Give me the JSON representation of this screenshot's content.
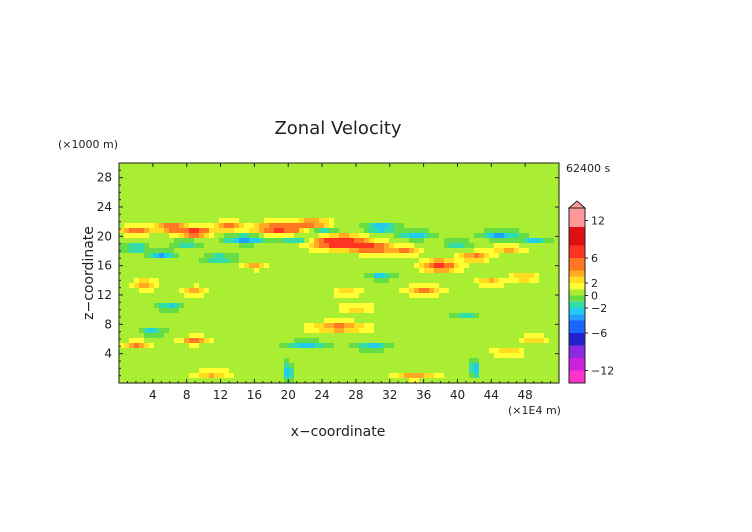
{
  "chart_data": {
    "type": "heatmap",
    "title": "Zonal Velocity",
    "xlabel": "x−coordinate",
    "ylabel": "z−coordinate",
    "x_unit": "(×1E4 m)",
    "y_unit": "(×1000 m)",
    "time_label": "62400 s",
    "xlim": [
      0,
      52
    ],
    "ylim": [
      0,
      30
    ],
    "x_ticks": [
      "4",
      "8",
      "12",
      "16",
      "20",
      "24",
      "28",
      "32",
      "36",
      "40",
      "44",
      "48"
    ],
    "y_ticks": [
      "4",
      "8",
      "12",
      "16",
      "20",
      "24",
      "28"
    ],
    "x_tick_values": [
      4,
      8,
      12,
      16,
      20,
      24,
      28,
      32,
      36,
      40,
      44,
      48
    ],
    "y_tick_values": [
      4,
      8,
      12,
      16,
      20,
      24,
      28
    ],
    "colorbar": {
      "range": [
        -14,
        14
      ],
      "tick_values": [
        12,
        6,
        2,
        0,
        -2,
        -6,
        -12
      ],
      "tick_labels": [
        "12",
        "6",
        "2",
        "0",
        "−2",
        "−6",
        "−12"
      ],
      "levels": [
        {
          "from": -14,
          "to": -12,
          "color": "#ff33cc"
        },
        {
          "from": -12,
          "to": -10,
          "color": "#cc22dd"
        },
        {
          "from": -10,
          "to": -8,
          "color": "#8a2be2"
        },
        {
          "from": -8,
          "to": -6,
          "color": "#2222cc"
        },
        {
          "from": -6,
          "to": -4,
          "color": "#1a66ff"
        },
        {
          "from": -4,
          "to": -3,
          "color": "#1ea0ff"
        },
        {
          "from": -3,
          "to": -2,
          "color": "#22ccee"
        },
        {
          "from": -2,
          "to": -1,
          "color": "#33ddaa"
        },
        {
          "from": -1,
          "to": 0,
          "color": "#66dd44"
        },
        {
          "from": 0,
          "to": 1,
          "color": "#aaee33"
        },
        {
          "from": 1,
          "to": 2,
          "color": "#ffff33"
        },
        {
          "from": 2,
          "to": 3,
          "color": "#ffdd22"
        },
        {
          "from": 3,
          "to": 4,
          "color": "#ffaa22"
        },
        {
          "from": 4,
          "to": 6,
          "color": "#ff7722"
        },
        {
          "from": 6,
          "to": 8,
          "color": "#ff3322"
        },
        {
          "from": 8,
          "to": 11,
          "color": "#dd1111"
        },
        {
          "from": 11,
          "to": 14,
          "color": "#ff9999"
        }
      ]
    },
    "background_value": 0.5,
    "features": [
      {
        "x": 2,
        "z": 20.8,
        "value": 5,
        "sx": 1.6,
        "sz": 0.6
      },
      {
        "x": 6,
        "z": 21.2,
        "value": 5,
        "sx": 1.6,
        "sz": 0.6
      },
      {
        "x": 9,
        "z": 20.6,
        "value": 6,
        "sx": 2.0,
        "sz": 0.7
      },
      {
        "x": 13,
        "z": 21.4,
        "value": 4,
        "sx": 1.6,
        "sz": 0.6
      },
      {
        "x": 19,
        "z": 21.0,
        "value": 6,
        "sx": 3.0,
        "sz": 0.8
      },
      {
        "x": 23,
        "z": 21.8,
        "value": 4,
        "sx": 2.0,
        "sz": 0.6
      },
      {
        "x": 26,
        "z": 19.2,
        "value": 8,
        "sx": 3.0,
        "sz": 0.9
      },
      {
        "x": 30,
        "z": 18.4,
        "value": 6,
        "sx": 2.2,
        "sz": 0.7
      },
      {
        "x": 34,
        "z": 18.0,
        "value": 4,
        "sx": 1.5,
        "sz": 0.6
      },
      {
        "x": 38,
        "z": 16.0,
        "value": 6,
        "sx": 2.0,
        "sz": 0.8
      },
      {
        "x": 42,
        "z": 17.2,
        "value": 4,
        "sx": 1.6,
        "sz": 0.6
      },
      {
        "x": 46,
        "z": 18.2,
        "value": 3,
        "sx": 1.8,
        "sz": 0.6
      },
      {
        "x": 2,
        "z": 18.4,
        "value": -3,
        "sx": 1.5,
        "sz": 0.5
      },
      {
        "x": 5,
        "z": 17.5,
        "value": -4,
        "sx": 1.4,
        "sz": 0.5
      },
      {
        "x": 8,
        "z": 19.0,
        "value": -3,
        "sx": 1.5,
        "sz": 0.5
      },
      {
        "x": 15,
        "z": 19.6,
        "value": -4,
        "sx": 2.5,
        "sz": 0.6
      },
      {
        "x": 21,
        "z": 19.6,
        "value": -3,
        "sx": 2.0,
        "sz": 0.5
      },
      {
        "x": 24,
        "z": 20.6,
        "value": -3,
        "sx": 1.8,
        "sz": 0.5
      },
      {
        "x": 31,
        "z": 21.2,
        "value": -4,
        "sx": 2.0,
        "sz": 0.6
      },
      {
        "x": 35,
        "z": 20.2,
        "value": -3,
        "sx": 2.0,
        "sz": 0.6
      },
      {
        "x": 40,
        "z": 19.0,
        "value": -3,
        "sx": 1.5,
        "sz": 0.5
      },
      {
        "x": 45,
        "z": 20.2,
        "value": -4,
        "sx": 2.0,
        "sz": 0.6
      },
      {
        "x": 49,
        "z": 19.4,
        "value": -3,
        "sx": 1.6,
        "sz": 0.5
      },
      {
        "x": 12,
        "z": 17.0,
        "value": -3,
        "sx": 2.0,
        "sz": 0.5
      },
      {
        "x": 3,
        "z": 13.5,
        "value": 3,
        "sx": 1.2,
        "sz": 0.8
      },
      {
        "x": 9,
        "z": 12.5,
        "value": 3,
        "sx": 1.4,
        "sz": 0.6
      },
      {
        "x": 27,
        "z": 12.4,
        "value": 3,
        "sx": 1.4,
        "sz": 0.5
      },
      {
        "x": 36,
        "z": 12.6,
        "value": 4,
        "sx": 2.0,
        "sz": 0.6
      },
      {
        "x": 44,
        "z": 13.8,
        "value": 3,
        "sx": 1.5,
        "sz": 0.6
      },
      {
        "x": 48,
        "z": 14.4,
        "value": 3,
        "sx": 1.5,
        "sz": 0.6
      },
      {
        "x": 31,
        "z": 14.6,
        "value": -3,
        "sx": 1.4,
        "sz": 0.5
      },
      {
        "x": 6,
        "z": 10.4,
        "value": -3,
        "sx": 1.4,
        "sz": 0.5
      },
      {
        "x": 26,
        "z": 7.6,
        "value": 4,
        "sx": 3.0,
        "sz": 0.7
      },
      {
        "x": 22,
        "z": 5.2,
        "value": -3,
        "sx": 2.5,
        "sz": 0.5
      },
      {
        "x": 30,
        "z": 5.0,
        "value": -3,
        "sx": 2.0,
        "sz": 0.5
      },
      {
        "x": 9,
        "z": 5.8,
        "value": 4,
        "sx": 1.6,
        "sz": 0.5
      },
      {
        "x": 2,
        "z": 5.2,
        "value": 4,
        "sx": 1.3,
        "sz": 0.5
      },
      {
        "x": 4,
        "z": 7.0,
        "value": -3,
        "sx": 1.3,
        "sz": 0.5
      },
      {
        "x": 46,
        "z": 4.2,
        "value": 3,
        "sx": 1.6,
        "sz": 0.5
      },
      {
        "x": 49,
        "z": 6.0,
        "value": 3,
        "sx": 1.3,
        "sz": 0.5
      },
      {
        "x": 41,
        "z": 9.2,
        "value": -2.5,
        "sx": 1.4,
        "sz": 0.5
      },
      {
        "x": 20,
        "z": 1.5,
        "value": -4,
        "sx": 0.5,
        "sz": 1.2
      },
      {
        "x": 42,
        "z": 2.0,
        "value": -4,
        "sx": 0.5,
        "sz": 1.2
      },
      {
        "x": 35,
        "z": 1.0,
        "value": 3,
        "sx": 2.5,
        "sz": 0.5
      },
      {
        "x": 11,
        "z": 1.2,
        "value": 3,
        "sx": 2.0,
        "sz": 0.5
      },
      {
        "x": 28,
        "z": 10.2,
        "value": 2.5,
        "sx": 2.0,
        "sz": 0.5
      },
      {
        "x": 16,
        "z": 16.0,
        "value": 3,
        "sx": 1.4,
        "sz": 0.5
      }
    ],
    "colors": {
      "background_field": "#ffff66",
      "quiet_field": "#aaee33",
      "frame": "#222222"
    }
  }
}
